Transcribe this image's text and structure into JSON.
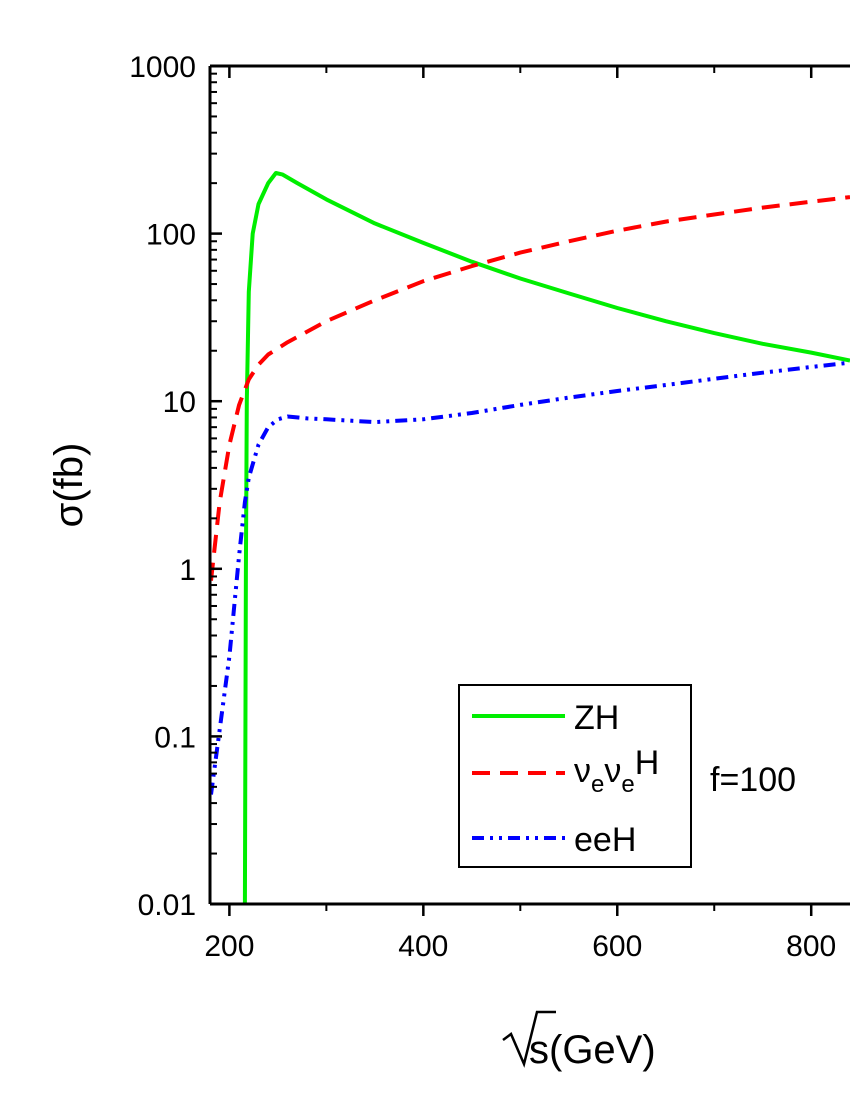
{
  "chart_data": {
    "type": "line",
    "title": "",
    "xlabel": "s(GeV)",
    "ylabel": "σ(fb)",
    "xlim": [
      180,
      840
    ],
    "ylim": [
      0.01,
      1000
    ],
    "yscale": "log",
    "x_ticks": [
      200,
      400,
      600,
      800
    ],
    "x_tick_labels": [
      "200",
      "400",
      "600",
      "800"
    ],
    "y_ticks": [
      0.01,
      0.1,
      1,
      10,
      100,
      1000
    ],
    "y_tick_labels": [
      "0.01",
      "0.1",
      "1",
      "10",
      "100",
      "1000"
    ],
    "grid": false,
    "legend_position": "bottom-center",
    "annotation": "f=100",
    "series": [
      {
        "name": "ZH",
        "color": "#00ee00",
        "dash": "solid",
        "x": [
          216,
          216.5,
          217,
          218,
          220,
          224,
          230,
          240,
          248,
          255,
          270,
          300,
          350,
          400,
          450,
          500,
          550,
          600,
          650,
          700,
          750,
          800,
          840
        ],
        "y": [
          0.01,
          0.1,
          1,
          10,
          45,
          100,
          150,
          200,
          230,
          225,
          200,
          160,
          115,
          88,
          68,
          54,
          44,
          36,
          30,
          25.5,
          22,
          19.5,
          17.5
        ]
      },
      {
        "name": "νeνeH",
        "label_parts": [
          "ν",
          "e",
          "ν",
          "e",
          "H"
        ],
        "color": "#ff0000",
        "dash": "dashed",
        "x": [
          181,
          190,
          200,
          210,
          220,
          230,
          240,
          260,
          300,
          350,
          400,
          450,
          500,
          550,
          600,
          650,
          700,
          750,
          800,
          840
        ],
        "y": [
          0.85,
          2.5,
          5.5,
          9.5,
          13.5,
          16.5,
          19,
          22.5,
          30,
          40,
          52,
          64,
          77,
          90,
          104,
          118,
          130,
          143,
          155,
          165
        ]
      },
      {
        "name": "eeH",
        "color": "#0000ff",
        "dash": "dashdotdot",
        "x": [
          181,
          190,
          200,
          210,
          216,
          220,
          230,
          240,
          250,
          260,
          280,
          300,
          350,
          400,
          450,
          500,
          550,
          600,
          650,
          700,
          750,
          800,
          840
        ],
        "y": [
          0.045,
          0.11,
          0.3,
          1.2,
          2.5,
          3.5,
          5.5,
          7,
          7.8,
          8.1,
          7.9,
          7.8,
          7.5,
          7.8,
          8.5,
          9.5,
          10.5,
          11.5,
          12.5,
          13.6,
          14.8,
          16,
          17
        ]
      }
    ]
  }
}
